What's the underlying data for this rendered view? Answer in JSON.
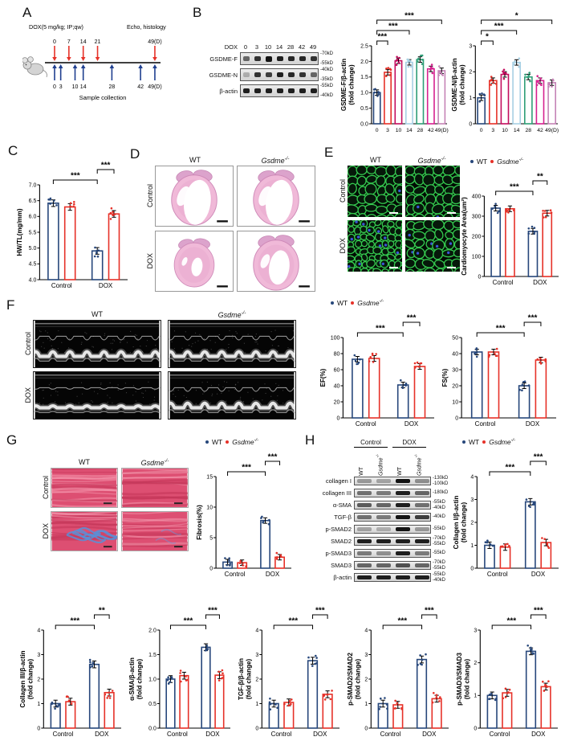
{
  "colors": {
    "wt": "#27477b",
    "ko": "#e63128",
    "timeline_red": "#e63128",
    "timeline_blue": "#1f3f8f"
  },
  "groups": {
    "wt": "WT",
    "ko": "Gsdme",
    "ko_sup": "-/-",
    "control": "Control",
    "dox": "DOX"
  },
  "legend": {
    "wt": "WT",
    "ko": "Gsdme",
    "ko_sup": "-/-"
  },
  "panelA": {
    "label": "A",
    "dox_label": "DOX(5 mg/kg; IP;qw)",
    "echo_label": "Echo, histology",
    "red_marks": [
      {
        "d": 0,
        "t": "0"
      },
      {
        "d": 7,
        "t": "7"
      },
      {
        "d": 14,
        "t": "14"
      },
      {
        "d": 21,
        "t": "21"
      },
      {
        "d": 49,
        "t": "49(D)"
      }
    ],
    "blue_marks": [
      {
        "d": 0,
        "t": "0"
      },
      {
        "d": 3,
        "t": "3"
      },
      {
        "d": 10,
        "t": "10"
      },
      {
        "d": 14,
        "t": "14"
      },
      {
        "d": 28,
        "t": "28"
      },
      {
        "d": 42,
        "t": "42"
      },
      {
        "d": 49,
        "t": "49(D)"
      }
    ],
    "caption": "Sample collection"
  },
  "panelB": {
    "label": "B",
    "blot": {
      "header": "DOX",
      "lanes": [
        "0",
        "3",
        "10",
        "14",
        "28",
        "42",
        "49"
      ],
      "rows": [
        {
          "name": "GSDME-F",
          "markers": [
            "70kD",
            "55kD"
          ],
          "bands": [
            0.6,
            0.85,
            1,
            0.95,
            0.9,
            0.9,
            0.85
          ]
        },
        {
          "name": "GSDME-N",
          "markers": [
            "40kD",
            "35kD"
          ],
          "bands": [
            0.25,
            0.85,
            0.8,
            0.95,
            0.9,
            0.85,
            0.6
          ]
        },
        {
          "name": "β-actin",
          "markers": [
            "55kD",
            "40kD"
          ],
          "bands": [
            0.95,
            0.95,
            0.95,
            0.95,
            0.95,
            0.95,
            0.95
          ]
        }
      ]
    }
  },
  "panelC": {
    "label": "C"
  },
  "panelD": {
    "label": "D"
  },
  "panelE": {
    "label": "E"
  },
  "panelF": {
    "label": "F"
  },
  "panelG": {
    "label": "G"
  },
  "panelH": {
    "label": "H",
    "blot": {
      "group_labels": [
        "Control",
        "DOX"
      ],
      "lanes": [
        "WT",
        "Gsdme-/-",
        "WT",
        "Gsdme-/-"
      ],
      "rows": [
        {
          "name": "collagen I",
          "markers": [
            "130kD",
            "100kD"
          ],
          "bands": [
            0.35,
            0.3,
            1,
            0.4
          ]
        },
        {
          "name": "collagen III",
          "markers": [
            "180kD"
          ],
          "bands": [
            0.55,
            0.5,
            0.95,
            0.6
          ]
        },
        {
          "name": "α-SMA",
          "markers": [
            "55kD",
            "40kD"
          ],
          "bands": [
            0.65,
            0.6,
            0.95,
            0.55
          ]
        },
        {
          "name": "TGF-β",
          "markers": [
            "40kD"
          ],
          "bands": [
            0.55,
            0.5,
            1,
            0.8
          ]
        },
        {
          "name": "p-SMAD2",
          "markers": [
            "55kD"
          ],
          "bands": [
            0.3,
            0.25,
            1,
            0.35
          ]
        },
        {
          "name": "SMAD2",
          "markers": [
            "70kD",
            "55kD"
          ],
          "bands": [
            0.95,
            0.95,
            0.95,
            0.95
          ]
        },
        {
          "name": "p-SMAD3",
          "markers": [
            "55kD"
          ],
          "bands": [
            0.5,
            0.4,
            0.95,
            0.5
          ]
        },
        {
          "name": "SMAD3",
          "markers": [
            "70kD",
            "55kD"
          ],
          "bands": [
            0.6,
            0.6,
            0.7,
            0.6
          ]
        },
        {
          "name": "β-actin",
          "markers": [
            "55kD",
            "40kD"
          ],
          "bands": [
            0.95,
            0.95,
            0.95,
            0.95
          ]
        }
      ]
    }
  },
  "chart_data": [
    {
      "id": "gsdme_f",
      "type": "bar",
      "ylabel": [
        "GSDME-F/β-actin",
        "(fold change)"
      ],
      "ylim": [
        0,
        2.5
      ],
      "yticks": [
        0,
        0.5,
        1,
        1.5,
        2,
        2.5
      ],
      "dec": 1,
      "categories": [
        "0",
        "3",
        "10",
        "14",
        "28",
        "42",
        "49(D)"
      ],
      "values": [
        1.0,
        1.65,
        2.02,
        1.97,
        2.06,
        1.76,
        1.7
      ],
      "bar_colors": [
        "#27477b",
        "#e63128",
        "#c40d5e",
        "#a7d0e4",
        "#2f9e77",
        "#d6208f",
        "#c583b6"
      ],
      "sig": [
        {
          "a": 0,
          "b": 1,
          "label": "***",
          "level": 1
        },
        {
          "a": 0,
          "b": 3,
          "label": "***",
          "level": 2
        },
        {
          "a": 0,
          "b": 6,
          "label": "***",
          "level": 3
        }
      ]
    },
    {
      "id": "gsdme_n",
      "type": "bar",
      "ylabel": [
        "GSDME-N/β-actin",
        "(fold change)"
      ],
      "ylim": [
        0,
        3
      ],
      "yticks": [
        0,
        1,
        2,
        3
      ],
      "dec": 0,
      "categories": [
        "0",
        "3",
        "10",
        "14",
        "28",
        "42",
        "49(D)"
      ],
      "values": [
        1.0,
        1.66,
        1.9,
        2.36,
        1.8,
        1.66,
        1.58
      ],
      "bar_colors": [
        "#27477b",
        "#e63128",
        "#c40d5e",
        "#a7d0e4",
        "#2f9e77",
        "#d6208f",
        "#c583b6"
      ],
      "sig": [
        {
          "a": 0,
          "b": 1,
          "label": "*",
          "level": 1
        },
        {
          "a": 0,
          "b": 3,
          "label": "***",
          "level": 2
        },
        {
          "a": 0,
          "b": 6,
          "label": "*",
          "level": 3
        }
      ]
    },
    {
      "id": "hw_tl",
      "type": "bar",
      "ylabel": [
        "HW/TL(mg/mm)"
      ],
      "ylim": [
        4,
        7
      ],
      "yticks": [
        4,
        4.5,
        5,
        5.5,
        6,
        6.5,
        7
      ],
      "dec": 1,
      "categories": [
        "Control",
        "DOX"
      ],
      "series": [
        {
          "key": "wt",
          "name": "WT",
          "values": [
            6.42,
            4.91
          ]
        },
        {
          "key": "ko",
          "name": "Gsdme-/-",
          "values": [
            6.3,
            6.08
          ]
        }
      ],
      "sig": [
        {
          "a": 0,
          "b": 2,
          "label": "***",
          "level": 1
        },
        {
          "a": 2,
          "b": 3,
          "label": "***",
          "level": 2
        }
      ]
    },
    {
      "id": "cm_area",
      "type": "bar",
      "ylabel": [
        "Cardiomyocyte Area(um²)"
      ],
      "ylim": [
        0,
        400
      ],
      "yticks": [
        0,
        100,
        200,
        300,
        400
      ],
      "dec": 0,
      "categories": [
        "Control",
        "DOX"
      ],
      "series": [
        {
          "key": "wt",
          "name": "WT",
          "values": [
            340,
            225
          ]
        },
        {
          "key": "ko",
          "name": "Gsdme-/-",
          "values": [
            337,
            315
          ]
        }
      ],
      "sig": [
        {
          "a": 0,
          "b": 2,
          "label": "***",
          "level": 1
        },
        {
          "a": 2,
          "b": 3,
          "label": "**",
          "level": 2
        }
      ]
    },
    {
      "id": "ef",
      "type": "bar",
      "ylabel": [
        "EF(%)"
      ],
      "ylim": [
        0,
        100
      ],
      "yticks": [
        0,
        20,
        40,
        60,
        80,
        100
      ],
      "dec": 0,
      "categories": [
        "Control",
        "DOX"
      ],
      "series": [
        {
          "key": "wt",
          "name": "WT",
          "values": [
            73,
            41
          ]
        },
        {
          "key": "ko",
          "name": "Gsdme-/-",
          "values": [
            74,
            64
          ]
        }
      ],
      "sig": [
        {
          "a": 0,
          "b": 2,
          "label": "***",
          "level": 1
        },
        {
          "a": 2,
          "b": 3,
          "label": "***",
          "level": 2
        }
      ]
    },
    {
      "id": "fs",
      "type": "bar",
      "ylabel": [
        "FS(%)"
      ],
      "ylim": [
        0,
        50
      ],
      "yticks": [
        0,
        10,
        20,
        30,
        40,
        50
      ],
      "dec": 0,
      "categories": [
        "Control",
        "DOX"
      ],
      "series": [
        {
          "key": "wt",
          "name": "WT",
          "values": [
            41,
            20
          ]
        },
        {
          "key": "ko",
          "name": "Gsdme-/-",
          "values": [
            41,
            36
          ]
        }
      ],
      "sig": [
        {
          "a": 0,
          "b": 2,
          "label": "***",
          "level": 1
        },
        {
          "a": 2,
          "b": 3,
          "label": "***",
          "level": 2
        }
      ]
    },
    {
      "id": "fibrosis",
      "type": "bar",
      "ylabel": [
        "Fibrosis(%)"
      ],
      "ylim": [
        0,
        15
      ],
      "yticks": [
        0,
        5,
        10,
        15
      ],
      "dec": 0,
      "errfrac": 0.03,
      "categories": [
        "Control",
        "DOX"
      ],
      "series": [
        {
          "key": "wt",
          "name": "WT",
          "values": [
            1.0,
            7.8
          ]
        },
        {
          "key": "ko",
          "name": "Gsdme-/-",
          "values": [
            0.9,
            1.8
          ]
        }
      ],
      "sig": [
        {
          "a": 0,
          "b": 2,
          "label": "***",
          "level": 1
        },
        {
          "a": 2,
          "b": 3,
          "label": "***",
          "level": 2
        }
      ]
    },
    {
      "id": "col1",
      "type": "bar",
      "ylabel": [
        "Collagen I/β-actin",
        "(fold change)"
      ],
      "ylim": [
        0,
        4
      ],
      "yticks": [
        0,
        1,
        2,
        3,
        4
      ],
      "dec": 0,
      "categories": [
        "Control",
        "DOX"
      ],
      "series": [
        {
          "key": "wt",
          "name": "WT",
          "values": [
            1.0,
            2.9
          ]
        },
        {
          "key": "ko",
          "name": "Gsdme-/-",
          "values": [
            0.92,
            1.12
          ]
        }
      ],
      "sig": [
        {
          "a": 0,
          "b": 2,
          "label": "***",
          "level": 1
        },
        {
          "a": 2,
          "b": 3,
          "label": "***",
          "level": 2
        }
      ]
    },
    {
      "id": "col3",
      "type": "bar",
      "ylabel": [
        "Collagen III/β-actin",
        "(fold change)"
      ],
      "ylim": [
        0,
        4
      ],
      "yticks": [
        0,
        1,
        2,
        3,
        4
      ],
      "dec": 0,
      "categories": [
        "Control",
        "DOX"
      ],
      "series": [
        {
          "key": "wt",
          "name": "WT",
          "values": [
            1.0,
            2.6
          ]
        },
        {
          "key": "ko",
          "name": "Gsdme-/-",
          "values": [
            1.08,
            1.45
          ]
        }
      ],
      "sig": [
        {
          "a": 0,
          "b": 2,
          "label": "***",
          "level": 1
        },
        {
          "a": 2,
          "b": 3,
          "label": "**",
          "level": 2
        }
      ]
    },
    {
      "id": "asma",
      "type": "bar",
      "ylabel": [
        "α-SMA/β-actin",
        "(fold change)"
      ],
      "ylim": [
        0,
        2
      ],
      "yticks": [
        0,
        0.5,
        1,
        1.5,
        2
      ],
      "dec": 1,
      "categories": [
        "Control",
        "DOX"
      ],
      "series": [
        {
          "key": "wt",
          "name": "WT",
          "values": [
            1.0,
            1.65
          ]
        },
        {
          "key": "ko",
          "name": "Gsdme-/-",
          "values": [
            1.07,
            1.08
          ]
        }
      ],
      "sig": [
        {
          "a": 0,
          "b": 2,
          "label": "***",
          "level": 1
        },
        {
          "a": 2,
          "b": 3,
          "label": "***",
          "level": 2
        }
      ]
    },
    {
      "id": "tgfb",
      "type": "bar",
      "ylabel": [
        "TGF-β/β-actin",
        "(fold change)"
      ],
      "ylim": [
        0,
        4
      ],
      "yticks": [
        0,
        1,
        2,
        3,
        4
      ],
      "dec": 0,
      "categories": [
        "Control",
        "DOX"
      ],
      "series": [
        {
          "key": "wt",
          "name": "WT",
          "values": [
            1.0,
            2.75
          ]
        },
        {
          "key": "ko",
          "name": "Gsdme-/-",
          "values": [
            1.05,
            1.38
          ]
        }
      ],
      "sig": [
        {
          "a": 0,
          "b": 2,
          "label": "***",
          "level": 1
        },
        {
          "a": 2,
          "b": 3,
          "label": "***",
          "level": 2
        }
      ]
    },
    {
      "id": "psmad2",
      "type": "bar",
      "ylabel": [
        "p-SMAD2/SMAD2",
        "(fold change)"
      ],
      "ylim": [
        0,
        4
      ],
      "yticks": [
        0,
        1,
        2,
        3,
        4
      ],
      "dec": 0,
      "categories": [
        "Control",
        "DOX"
      ],
      "series": [
        {
          "key": "wt",
          "name": "WT",
          "values": [
            1.0,
            2.8
          ]
        },
        {
          "key": "ko",
          "name": "Gsdme-/-",
          "values": [
            0.95,
            1.2
          ]
        }
      ],
      "sig": [
        {
          "a": 0,
          "b": 2,
          "label": "***",
          "level": 1
        },
        {
          "a": 2,
          "b": 3,
          "label": "***",
          "level": 2
        }
      ]
    },
    {
      "id": "psmad3",
      "type": "bar",
      "ylabel": [
        "p-SMAD3/SMAD3",
        "(fold change)"
      ],
      "ylim": [
        0,
        3
      ],
      "yticks": [
        0,
        1,
        2,
        3
      ],
      "dec": 0,
      "categories": [
        "Control",
        "DOX"
      ],
      "series": [
        {
          "key": "wt",
          "name": "WT",
          "values": [
            1.0,
            2.35
          ]
        },
        {
          "key": "ko",
          "name": "Gsdme-/-",
          "values": [
            1.08,
            1.27
          ]
        }
      ],
      "sig": [
        {
          "a": 0,
          "b": 2,
          "label": "***",
          "level": 1
        },
        {
          "a": 2,
          "b": 3,
          "label": "***",
          "level": 2
        }
      ]
    }
  ]
}
